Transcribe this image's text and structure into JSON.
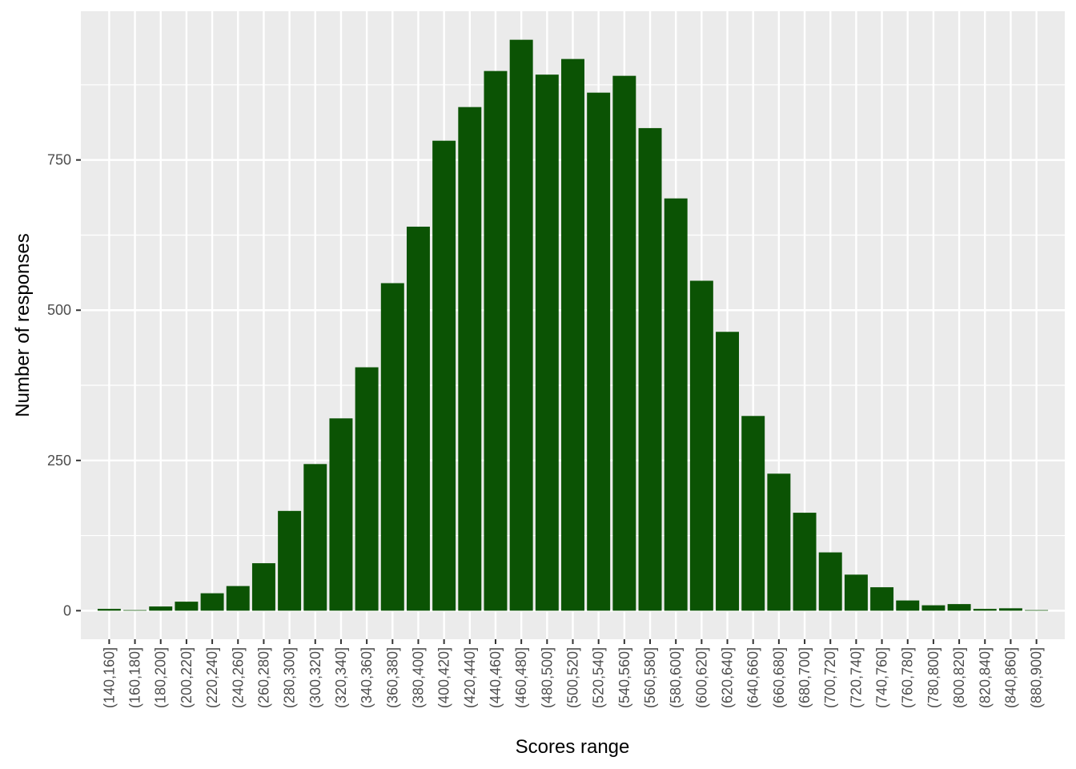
{
  "chart_data": {
    "type": "bar",
    "x_label": "Scores range",
    "y_label": "Number of responses",
    "categories": [
      "(140,160]",
      "(160,180]",
      "(180,200]",
      "(200,220]",
      "(220,240]",
      "(240,260]",
      "(260,280]",
      "(280,300]",
      "(300,320]",
      "(320,340]",
      "(340,360]",
      "(360,380]",
      "(380,400]",
      "(400,420]",
      "(420,440]",
      "(440,460]",
      "(460,480]",
      "(480,500]",
      "(500,520]",
      "(520,540]",
      "(540,560]",
      "(560,580]",
      "(580,600]",
      "(600,620]",
      "(620,640]",
      "(640,660]",
      "(660,680]",
      "(680,700]",
      "(700,720]",
      "(720,740]",
      "(740,760]",
      "(760,780]",
      "(780,800]",
      "(800,820]",
      "(820,840]",
      "(840,860]",
      "(880,900]"
    ],
    "values": [
      3,
      1,
      7,
      15,
      29,
      41,
      79,
      166,
      244,
      320,
      405,
      545,
      639,
      782,
      838,
      898,
      950,
      892,
      918,
      862,
      890,
      803,
      686,
      549,
      464,
      324,
      228,
      163,
      97,
      60,
      39,
      17,
      9,
      11,
      3,
      4,
      1
    ],
    "color": "#0b5304",
    "ylim": [
      -47.5,
      997.5
    ],
    "yticks": [
      0,
      250,
      500,
      750
    ],
    "yminorticks": [
      125,
      375,
      625,
      875
    ],
    "grid": true
  }
}
